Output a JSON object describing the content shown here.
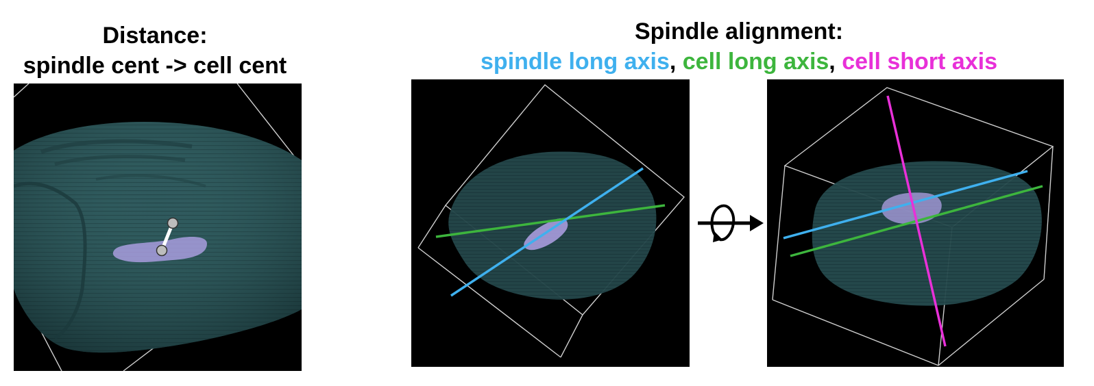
{
  "left_panel": {
    "title_line1": "Distance:",
    "title_line2": "spindle cent -> cell cent"
  },
  "right_panel": {
    "title_line1": "Spindle alignment:",
    "legend": {
      "spindle_long_axis": "spindle long axis",
      "cell_long_axis": "cell long axis",
      "cell_short_axis": "cell short axis",
      "separator": ", "
    }
  },
  "colors": {
    "spindle_long_axis": "#3fb0ee",
    "cell_long_axis": "#3db53d",
    "cell_short_axis": "#e830d8",
    "cell_body": "#2f5a5d",
    "spindle_body": "#b9a7f0",
    "background": "#000000"
  },
  "icons": {
    "rotation": "rotation-arrow-icon"
  }
}
